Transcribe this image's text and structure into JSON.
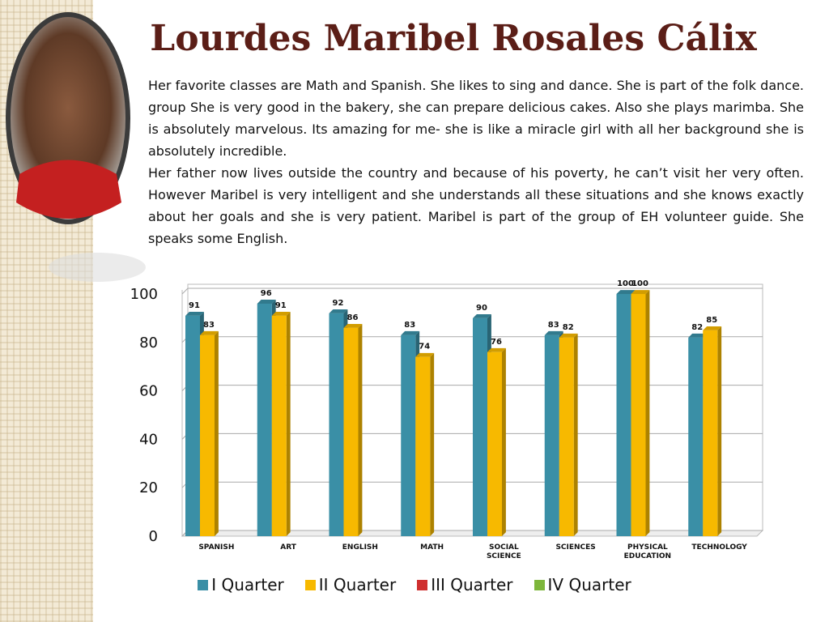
{
  "title": "Lourdes Maribel Rosales Cálix",
  "paragraphs": [
    "Her favorite classes are Math and Spanish.  She likes to sing and dance.  She is part of the folk dance. group  She is very good in the bakery, she can prepare delicious cakes. Also she plays marimba.   She is absolutely marvelous.  Its amazing for me- she is like a miracle girl with all her background she is absolutely incredible.",
    "Her father now lives outside the country and because of his poverty,  he can’t visit her very often. However Maribel is very intelligent and she understands all these situations and she knows exactly about her goals and she is very patient.  Maribel is part of the group of EH volunteer guide.  She speaks some English."
  ],
  "chart_data": {
    "type": "bar",
    "categories": [
      "SPANISH",
      "ART",
      "ENGLISH",
      "MATH",
      "SOCIAL SCIENCE",
      "SCIENCES",
      "PHYSICAL EDUCATION",
      "TECHNOLOGY"
    ],
    "series": [
      {
        "name": "I Quarter",
        "color": "#3a8fa6",
        "values": [
          91,
          96,
          92,
          83,
          90,
          83,
          100,
          82
        ]
      },
      {
        "name": "II Quarter",
        "color": "#f7b900",
        "values": [
          83,
          91,
          86,
          74,
          76,
          82,
          100,
          85
        ]
      },
      {
        "name": "III Quarter",
        "color": "#cf2f2f",
        "values": [
          null,
          null,
          null,
          null,
          null,
          null,
          null,
          null
        ]
      },
      {
        "name": "IV Quarter",
        "color": "#7db63b",
        "values": [
          null,
          null,
          null,
          null,
          null,
          null,
          null,
          null
        ]
      }
    ],
    "ylim": [
      0,
      100
    ],
    "yticks": [
      0,
      20,
      40,
      60,
      80,
      100
    ],
    "grid": true,
    "legend": "bottom"
  }
}
